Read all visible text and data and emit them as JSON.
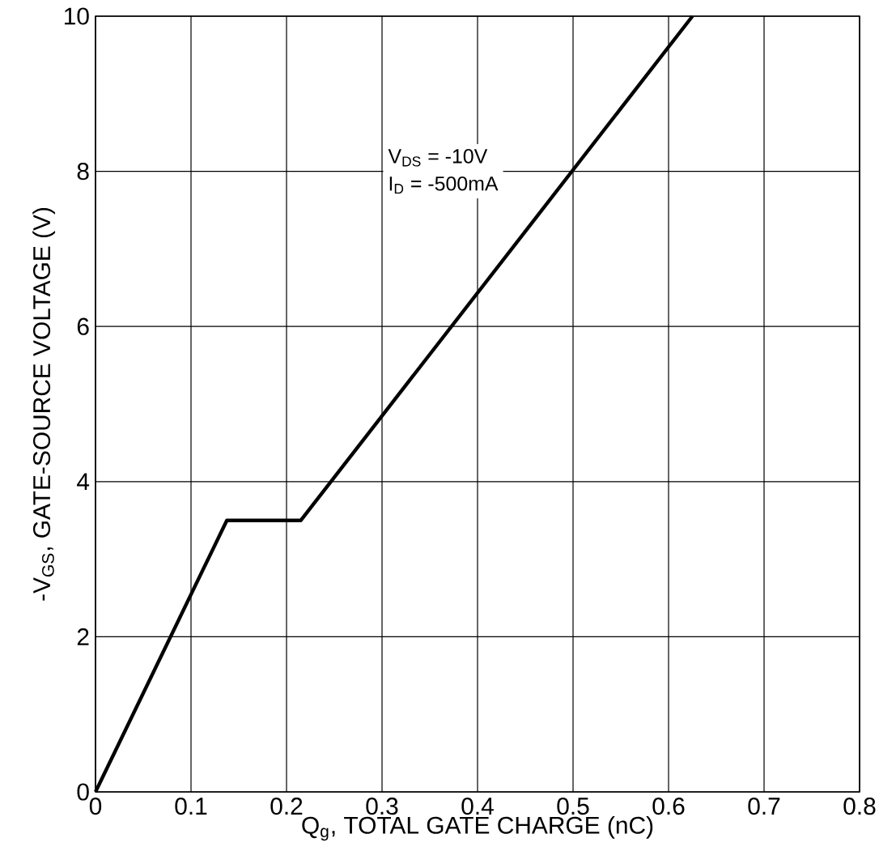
{
  "chart_data": {
    "type": "line",
    "xlabel": "Q$_{g}$, TOTAL GATE CHARGE (nC)",
    "ylabel": "-V$_{GS}$, GATE-SOURCE VOLTAGE (V)",
    "annotations": [
      "V$_{DS}$ = -10V",
      "I$_{D}$ = -500mA"
    ],
    "x": [
      0,
      0.1375,
      0.215,
      0.625
    ],
    "series": [
      {
        "color": "#000000",
        "values": [
          0,
          3.5,
          3.5,
          10
        ]
      }
    ],
    "xlim": [
      0,
      0.8
    ],
    "ylim": [
      0,
      10
    ],
    "xticks": [
      0,
      0.1,
      0.2,
      0.3,
      0.4,
      0.5,
      0.6,
      0.7,
      0.8
    ],
    "yticks": [
      0,
      2,
      4,
      6,
      8,
      10
    ],
    "grid": true,
    "marker": "none",
    "line_style": "solid"
  }
}
